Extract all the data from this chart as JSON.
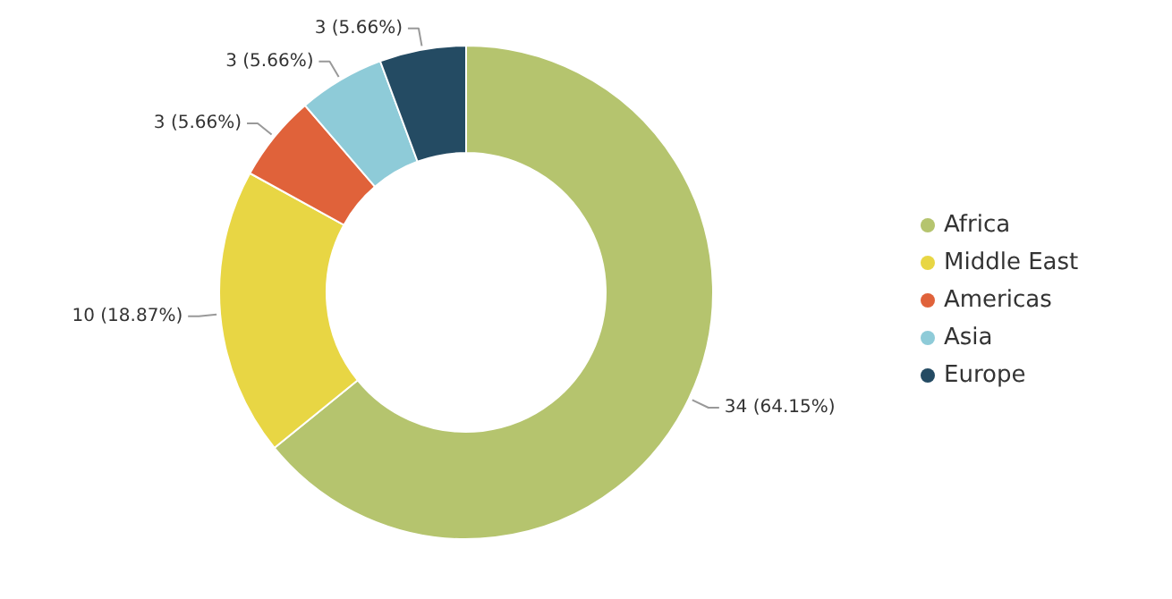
{
  "chart_data": {
    "type": "donut",
    "categories": [
      "Africa",
      "Middle East",
      "Americas",
      "Asia",
      "Europe"
    ],
    "values": [
      34,
      10,
      3,
      3,
      3
    ],
    "colors": [
      "#b5c46e",
      "#e8d644",
      "#e0623a",
      "#8ecbd8",
      "#244b63"
    ],
    "value_labels": [
      "34 (64.15%)",
      "10 (18.87%)",
      "3 (5.66%)",
      "3 (5.66%)",
      "3 (5.66%)"
    ],
    "legend": "right"
  }
}
